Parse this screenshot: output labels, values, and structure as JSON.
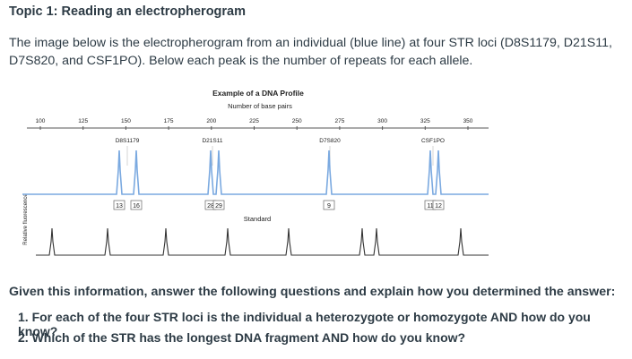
{
  "header": {
    "title": "Topic 1: Reading an electropherogram"
  },
  "intro": "The image below is the electropherogram from an individual (blue line) at four STR loci (D8S1179, D21S11, D7S820, and CSF1PO). Below each peak is the number of repeats for each allele.",
  "figure": {
    "title": "Example of a DNA Profile",
    "axis_label": "Number of base pairs",
    "ticks": [
      100,
      125,
      150,
      175,
      200,
      225,
      250,
      275,
      300,
      325,
      350
    ],
    "y_label": "Relative fluorescence",
    "loci": [
      {
        "name": "D8S1179",
        "alleles": [
          13,
          16
        ]
      },
      {
        "name": "D21S11",
        "alleles": [
          28,
          29
        ]
      },
      {
        "name": "D7S820",
        "alleles": [
          9
        ]
      },
      {
        "name": "CSF1PO",
        "alleles": [
          11,
          12
        ]
      }
    ],
    "standard_label": "Standard"
  },
  "questions": {
    "prompt": "Given this information, answer the following questions and explain how you determined the answer:",
    "items": [
      "1. For each of the four STR loci is the individual a heterozygote or homozygote AND how do you know?",
      "2. Which of the STR has the longest DNA fragment AND how do you know?"
    ]
  }
}
